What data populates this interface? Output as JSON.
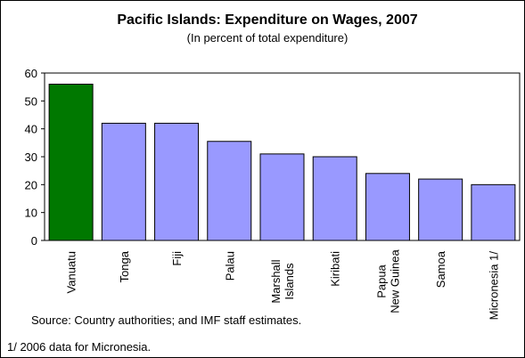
{
  "chart_data": {
    "type": "bar",
    "title": "Pacific Islands: Expenditure on Wages, 2007",
    "subtitle": "(In percent of total expenditure)",
    "categories": [
      [
        "Vanuatu"
      ],
      [
        "Tonga"
      ],
      [
        "Fiji"
      ],
      [
        "Palau"
      ],
      [
        "Marshall",
        "Islands"
      ],
      [
        "Kiribati"
      ],
      [
        "Papua",
        "New Guinea"
      ],
      [
        "Samoa"
      ],
      [
        "Micronesia 1/"
      ]
    ],
    "values": [
      56,
      42,
      42,
      35.5,
      31,
      30,
      24,
      22,
      20
    ],
    "colors": [
      "#007800",
      "#9999ff",
      "#9999ff",
      "#9999ff",
      "#9999ff",
      "#9999ff",
      "#9999ff",
      "#9999ff",
      "#9999ff"
    ],
    "ylim": [
      0,
      60
    ],
    "yticks": [
      0,
      10,
      20,
      30,
      40,
      50,
      60
    ],
    "source": "Source: Country authorities; and IMF staff estimates.",
    "footnote": "1/ 2006 data for Micronesia."
  }
}
